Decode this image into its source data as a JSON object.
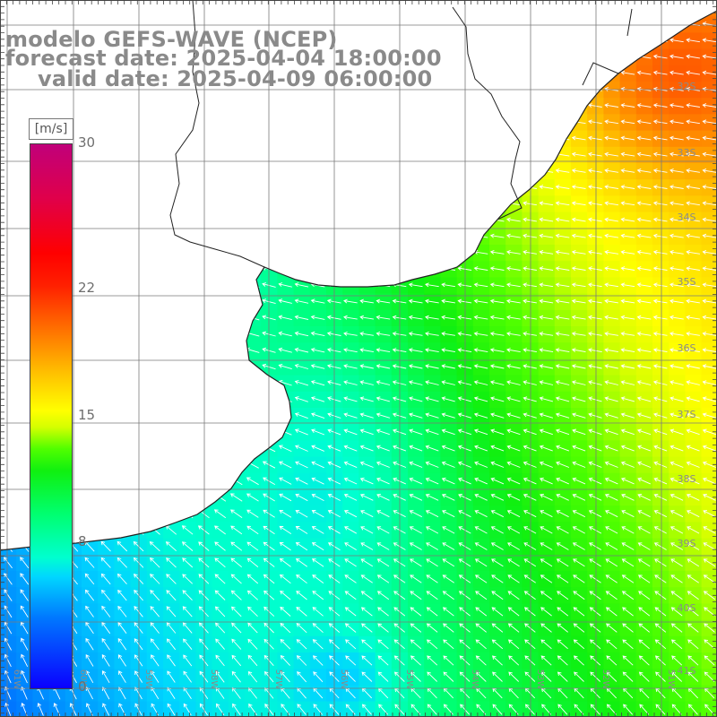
{
  "title": {
    "line1": "modelo GEFS-WAVE (NCEP)",
    "line2": "forecast date: 2025-04-04 18:00:00",
    "line3": "valid date: 2025-04-09 06:00:00"
  },
  "legend": {
    "unit": "[m/s]",
    "ticks": [
      {
        "label": "30",
        "value": 30
      },
      {
        "label": "22",
        "value": 22
      },
      {
        "label": "15",
        "value": 15
      },
      {
        "label": "8",
        "value": 8
      },
      {
        "label": "0",
        "value": 0
      }
    ],
    "range": [
      0,
      30
    ],
    "colors": [
      "#0a00ff",
      "#00d6ff",
      "#00ff90",
      "#10f010",
      "#ffff00",
      "#ff7000",
      "#ff0000",
      "#c0007a"
    ]
  },
  "map": {
    "lat_labels": [
      "32S",
      "33S",
      "34S",
      "35S",
      "36S",
      "37S",
      "38S",
      "39S",
      "40S",
      "41S"
    ],
    "lon_labels": [
      "61W",
      "60W",
      "59W",
      "58W",
      "57W",
      "56W",
      "55W",
      "54W",
      "53W",
      "52W",
      "51W"
    ],
    "wind_direction": "from east / north-east toward south-west",
    "field": "10 m wind speed with direction arrows"
  }
}
